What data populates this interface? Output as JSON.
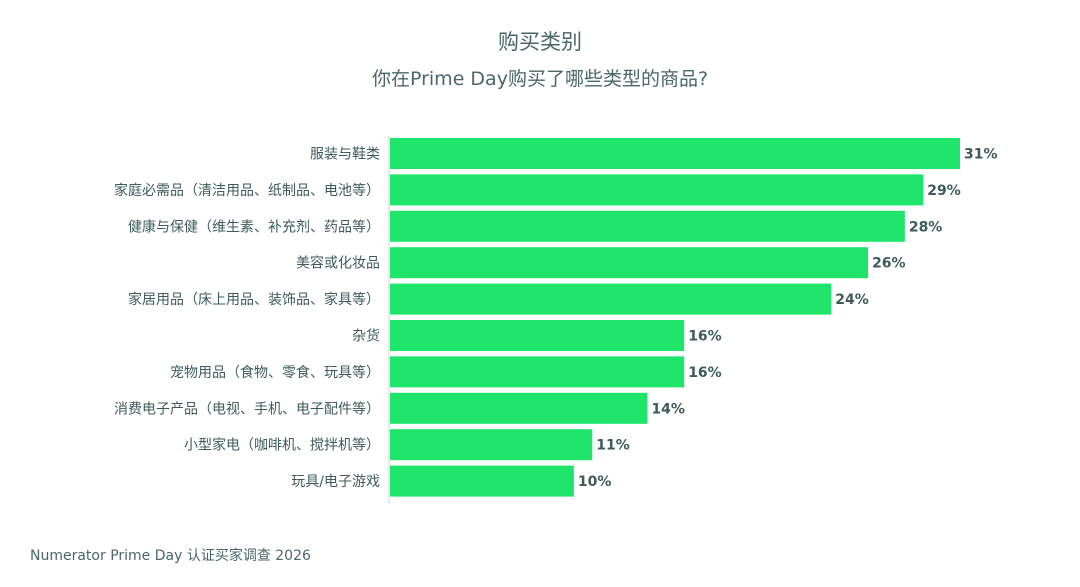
{
  "header": {
    "title": "购买类别",
    "subtitle": "你在Prime Day购买了哪些类型的商品?"
  },
  "footer": {
    "source": "Numerator Prime Day 认证买家调查 2026"
  },
  "colors": {
    "bar": "#1ee46a",
    "text": "#4a6669",
    "axis": "#d0d6d6"
  },
  "chart_data": {
    "type": "bar",
    "orientation": "horizontal",
    "categories": [
      "服装与鞋类",
      "家庭必需品（清洁用品、纸制品、电池等）",
      "健康与保健（维生素、补充剂、药品等）",
      "美容或化妆品",
      "家居用品（床上用品、装饰品、家具等）",
      "杂货",
      "宠物用品（食物、零食、玩具等）",
      "消费电子产品（电视、手机、电子配件等）",
      "小型家电（咖啡机、搅拌机等）",
      "玩具/电子游戏"
    ],
    "values": [
      31,
      29,
      28,
      26,
      24,
      16,
      16,
      14,
      11,
      10
    ],
    "value_labels": [
      "31%",
      "29%",
      "28%",
      "26%",
      "24%",
      "16%",
      "16%",
      "14%",
      "11%",
      "10%"
    ],
    "unit": "%",
    "xlim": [
      0,
      31
    ],
    "grid": false,
    "legend": "none"
  }
}
